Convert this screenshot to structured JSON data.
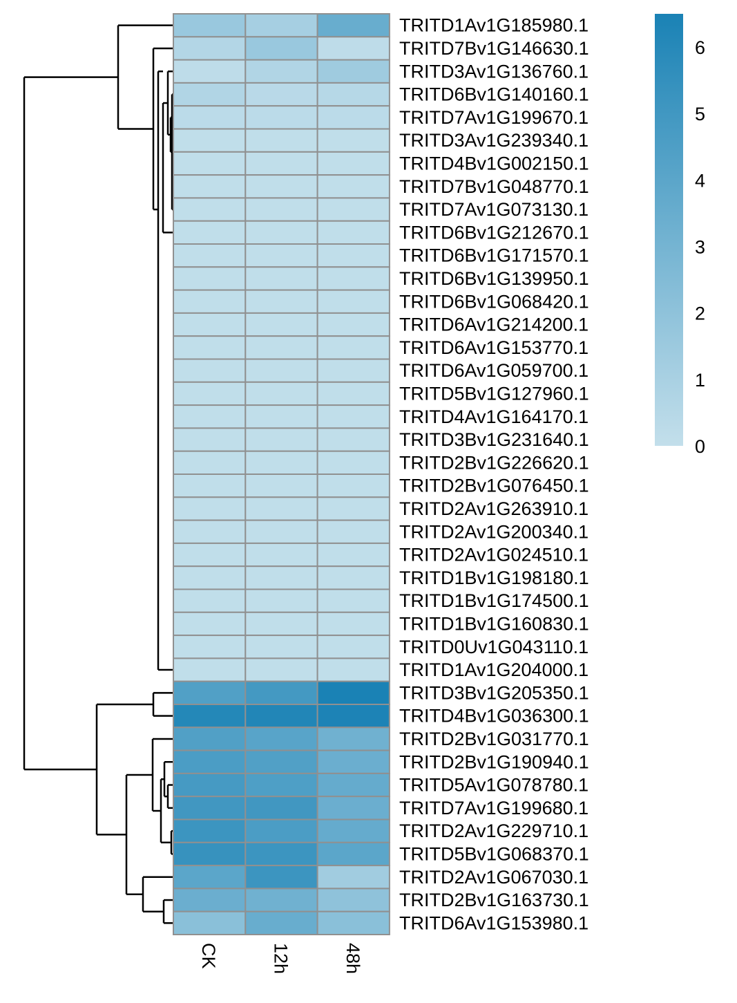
{
  "chart_data": {
    "type": "heatmap",
    "columns": [
      "CK",
      "12h",
      "48h"
    ],
    "rows": [
      "TRITD1Av1G185980.1",
      "TRITD7Bv1G146630.1",
      "TRITD3Av1G136760.1",
      "TRITD6Bv1G140160.1",
      "TRITD7Av1G199670.1",
      "TRITD3Av1G239340.1",
      "TRITD4Bv1G002150.1",
      "TRITD7Bv1G048770.1",
      "TRITD7Av1G073130.1",
      "TRITD6Bv1G212670.1",
      "TRITD6Bv1G171570.1",
      "TRITD6Bv1G139950.1",
      "TRITD6Bv1G068420.1",
      "TRITD6Av1G214200.1",
      "TRITD6Av1G153770.1",
      "TRITD6Av1G059700.1",
      "TRITD5Bv1G127960.1",
      "TRITD4Av1G164170.1",
      "TRITD3Bv1G231640.1",
      "TRITD2Bv1G226620.1",
      "TRITD2Bv1G076450.1",
      "TRITD2Av1G263910.1",
      "TRITD2Av1G200340.1",
      "TRITD2Av1G024510.1",
      "TRITD1Bv1G198180.1",
      "TRITD1Bv1G174500.1",
      "TRITD1Bv1G160830.1",
      "TRITD0Uv1G043110.1",
      "TRITD1Av1G204000.1",
      "TRITD3Bv1G205350.1",
      "TRITD4Bv1G036300.1",
      "TRITD2Bv1G031770.1",
      "TRITD2Bv1G190940.1",
      "TRITD5Av1G078780.1",
      "TRITD7Av1G199680.1",
      "TRITD2Av1G229710.1",
      "TRITD5Bv1G068370.1",
      "TRITD2Av1G067030.1",
      "TRITD2Bv1G163730.1",
      "TRITD6Av1G153980.1"
    ],
    "values": [
      [
        1.6,
        1.1,
        3.5
      ],
      [
        0.6,
        1.6,
        0.2
      ],
      [
        0.2,
        0.7,
        1.4
      ],
      [
        0.7,
        0.4,
        0.5
      ],
      [
        0.3,
        0.3,
        0.3
      ],
      [
        0.1,
        0.1,
        0.1
      ],
      [
        0.1,
        0.1,
        0.1
      ],
      [
        0.1,
        0.1,
        0.1
      ],
      [
        0.1,
        0.1,
        0.1
      ],
      [
        0.1,
        0.1,
        0.1
      ],
      [
        0.1,
        0.1,
        0.1
      ],
      [
        0.1,
        0.1,
        0.1
      ],
      [
        0.1,
        0.1,
        0.1
      ],
      [
        0.1,
        0.1,
        0.1
      ],
      [
        0.1,
        0.1,
        0.1
      ],
      [
        0.1,
        0.1,
        0.1
      ],
      [
        0.1,
        0.1,
        0.1
      ],
      [
        0.1,
        0.1,
        0.1
      ],
      [
        0.1,
        0.1,
        0.1
      ],
      [
        0.1,
        0.1,
        0.1
      ],
      [
        0.1,
        0.1,
        0.1
      ],
      [
        0.1,
        0.1,
        0.1
      ],
      [
        0.1,
        0.1,
        0.1
      ],
      [
        0.1,
        0.1,
        0.1
      ],
      [
        0.1,
        0.1,
        0.1
      ],
      [
        0.1,
        0.1,
        0.1
      ],
      [
        0.1,
        0.1,
        0.1
      ],
      [
        0.1,
        0.1,
        0.1
      ],
      [
        0.1,
        0.1,
        0.1
      ],
      [
        4.4,
        4.9,
        6.5
      ],
      [
        6.1,
        6.2,
        6.4
      ],
      [
        4.4,
        4.1,
        3.2
      ],
      [
        4.6,
        4.4,
        3.4
      ],
      [
        4.8,
        4.5,
        3.6
      ],
      [
        5.0,
        5.0,
        3.4
      ],
      [
        5.2,
        4.6,
        3.6
      ],
      [
        5.4,
        5.2,
        4.0
      ],
      [
        4.0,
        5.2,
        1.3
      ],
      [
        3.4,
        3.2,
        2.0
      ],
      [
        2.2,
        3.5,
        2.2
      ]
    ],
    "scale": {
      "min": 0,
      "max": 6.5,
      "ticks": [
        0,
        1,
        2,
        3,
        4,
        5,
        6
      ],
      "low_color": "#c3dfeb",
      "high_color": "#1a82b5"
    },
    "cell_border_color": "#909090",
    "dendrogram_color": "#000000"
  }
}
